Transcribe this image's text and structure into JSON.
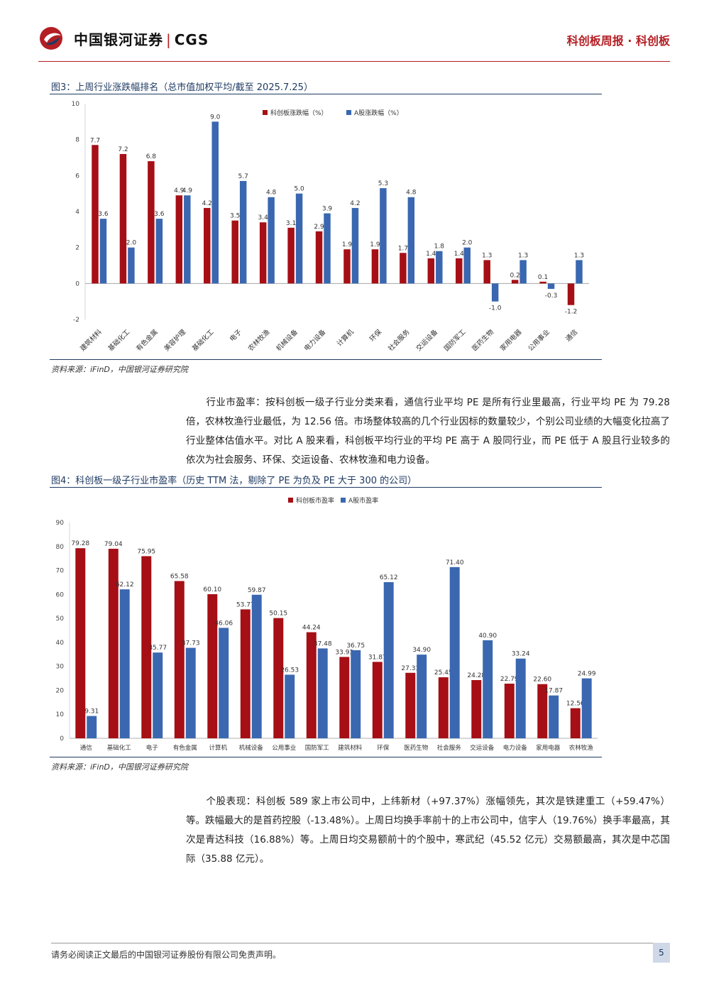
{
  "header": {
    "brand_cn": "中国银河证券",
    "brand_en": "CGS",
    "right_text": "科创板周报 · 科创板",
    "brand_color": "#b41f24"
  },
  "figures": {
    "fig3": {
      "title": "图3：上周行业涨跌幅排名（总市值加权平均/截至 2025.7.25）",
      "source": "资料来源：iFinD，中国银河证券研究院"
    },
    "fig4": {
      "title": "图4：科创板一级子行业市盈率（历史 TTM 法，剔除了 PE 为负及 PE 大于 300 的公司）",
      "source": "资料来源：iFinD，中国银河证券研究院"
    }
  },
  "paragraphs": {
    "p1": "行业市盈率：按科创板一级子行业分类来看，通信行业平均 PE 是所有行业里最高，行业平均 PE 为 79.28 倍，农林牧渔行业最低，为 12.56 倍。市场整体较高的几个行业因标的数量较少，个别公司业绩的大幅变化拉高了行业整体估值水平。对比 A 股来看，科创板平均行业的平均 PE 高于 A 股同行业，而 PE 低于 A 股且行业较多的依次为社会服务、环保、交运设备、农林牧渔和电力设备。",
    "p2": "个股表现：科创板 589 家上市公司中，上纬新材（+97.37%）涨幅领先，其次是铁建重工（+59.47%）等。跌幅最大的是首药控股（-13.48%）。上周日均换手率前十的上市公司中，信宇人（19.76%）换手率最高，其次是青达科技（16.88%）等。上周日均交易额前十的个股中，寒武纪（45.52 亿元）交易额最高，其次是中芯国际（35.88 亿元）。"
  },
  "footer": {
    "disclaimer": "请务必阅读正文最后的中国银河证券股份有限公司免责声明。",
    "page_number": "5"
  },
  "chart_data": [
    {
      "type": "bar",
      "title": "",
      "categories": [
        "建筑材料",
        "基础化工",
        "有色金属",
        "美容护理",
        "基础化工",
        "电子",
        "农林牧渔",
        "机械设备",
        "电力设备",
        "计算机",
        "环保",
        "社会服务",
        "交运设备",
        "国防军工",
        "医药生物",
        "家用电器",
        "公用事业",
        "通信"
      ],
      "series": [
        {
          "name": "科创板涨跌幅（%）",
          "color": "#a50f15",
          "values": [
            7.7,
            7.2,
            6.8,
            4.9,
            4.2,
            3.5,
            3.4,
            3.1,
            2.9,
            1.9,
            1.9,
            1.7,
            1.4,
            1.4,
            1.3,
            0.2,
            0.1,
            -1.2
          ]
        },
        {
          "name": "A股涨跌幅（%）",
          "color": "#3a67b0",
          "values": [
            3.6,
            2.0,
            3.6,
            4.9,
            9.0,
            5.7,
            4.8,
            5.0,
            3.9,
            4.2,
            5.3,
            4.8,
            1.8,
            2.0,
            -1.0,
            1.3,
            -0.3,
            1.3
          ]
        }
      ],
      "ylim": [
        -2,
        10
      ],
      "yticks": [
        -2,
        0,
        2,
        4,
        6,
        8,
        10
      ],
      "legend_position": "top-center",
      "grid": false
    },
    {
      "type": "bar",
      "title": "",
      "categories": [
        "通信",
        "基础化工",
        "电子",
        "有色金属",
        "计算机",
        "机械设备",
        "公用事业",
        "国防军工",
        "建筑材料",
        "环保",
        "医药生物",
        "社会服务",
        "交运设备",
        "电力设备",
        "家用电器",
        "农林牧渔"
      ],
      "series": [
        {
          "name": "科创板市盈率",
          "color": "#a50f15",
          "values": [
            79.28,
            79.04,
            75.95,
            65.58,
            60.1,
            53.77,
            50.15,
            44.24,
            33.93,
            31.87,
            27.31,
            25.45,
            24.28,
            22.79,
            22.6,
            12.56
          ]
        },
        {
          "name": "A股市盈率",
          "color": "#3a67b0",
          "values": [
            9.31,
            62.12,
            35.77,
            37.73,
            46.06,
            59.87,
            26.53,
            37.48,
            36.75,
            65.12,
            34.9,
            71.4,
            40.9,
            33.24,
            17.87,
            24.99
          ]
        }
      ],
      "ylim": [
        0,
        90
      ],
      "yticks": [
        0,
        10,
        20,
        30,
        40,
        50,
        60,
        70,
        80,
        90
      ],
      "legend_position": "top-center",
      "grid": false
    }
  ]
}
